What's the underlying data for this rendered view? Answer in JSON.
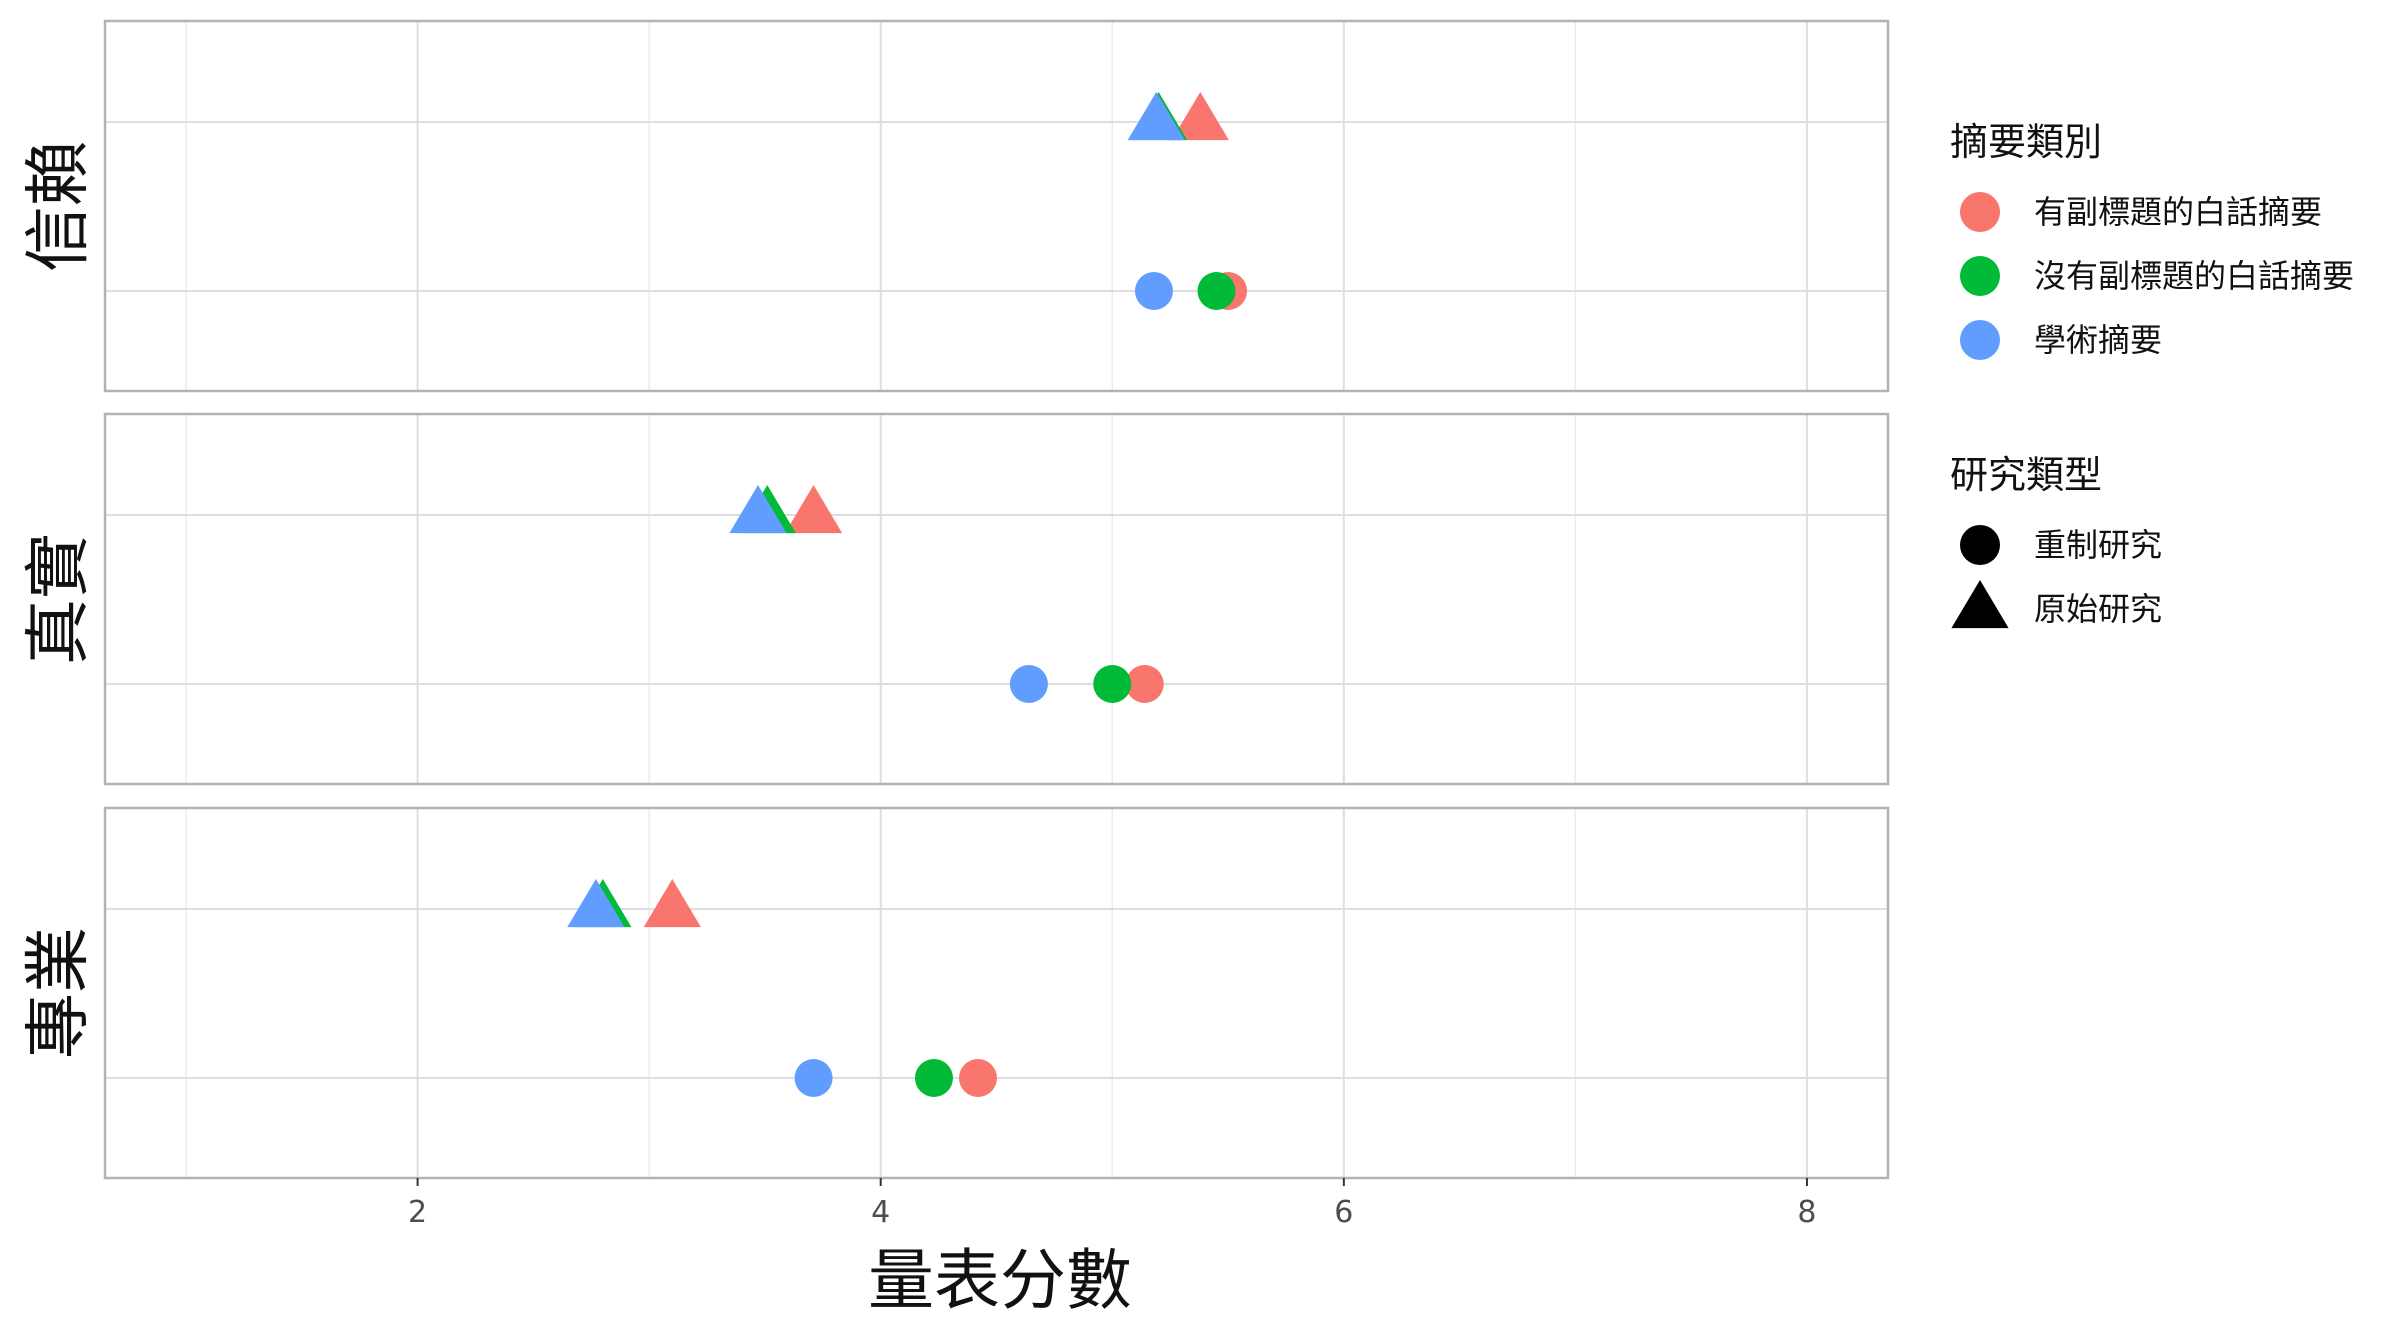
{
  "chart_data": {
    "type": "scatter",
    "xlabel": "量表分數",
    "xlim": [
      0.65,
      8.35
    ],
    "x_ticks": [
      2,
      4,
      6,
      8
    ],
    "grid": true,
    "legend_position": "right",
    "panels": [
      "信賴",
      "真實",
      "專業"
    ],
    "rows": [
      "原始研究",
      "重制研究"
    ],
    "color_legend": {
      "title": "摘要類別",
      "items": [
        {
          "label": "有副標題的白話摘要",
          "color": "#F8766D"
        },
        {
          "label": "沒有副標題的白話摘要",
          "color": "#00BA38"
        },
        {
          "label": "學術摘要",
          "color": "#619CFF"
        }
      ]
    },
    "shape_legend": {
      "title": "研究類型",
      "items": [
        {
          "label": "重制研究",
          "shape": "circle"
        },
        {
          "label": "原始研究",
          "shape": "triangle"
        }
      ]
    },
    "series": [
      {
        "category": "有副標題的白話摘要",
        "color": "#F8766D",
        "points": [
          {
            "panel": "信賴",
            "study": "原始研究",
            "x": 5.38
          },
          {
            "panel": "信賴",
            "study": "重制研究",
            "x": 5.5
          },
          {
            "panel": "真實",
            "study": "原始研究",
            "x": 3.71
          },
          {
            "panel": "真實",
            "study": "重制研究",
            "x": 5.14
          },
          {
            "panel": "專業",
            "study": "原始研究",
            "x": 3.1
          },
          {
            "panel": "專業",
            "study": "重制研究",
            "x": 4.42
          }
        ]
      },
      {
        "category": "沒有副標題的白話摘要",
        "color": "#00BA38",
        "points": [
          {
            "panel": "信賴",
            "study": "原始研究",
            "x": 5.2
          },
          {
            "panel": "信賴",
            "study": "重制研究",
            "x": 5.45
          },
          {
            "panel": "真實",
            "study": "原始研究",
            "x": 3.51
          },
          {
            "panel": "真實",
            "study": "重制研究",
            "x": 5.0
          },
          {
            "panel": "專業",
            "study": "原始研究",
            "x": 2.8
          },
          {
            "panel": "專業",
            "study": "重制研究",
            "x": 4.23
          }
        ]
      },
      {
        "category": "學術摘要",
        "color": "#619CFF",
        "points": [
          {
            "panel": "信賴",
            "study": "原始研究",
            "x": 5.19
          },
          {
            "panel": "信賴",
            "study": "重制研究",
            "x": 5.18
          },
          {
            "panel": "真實",
            "study": "原始研究",
            "x": 3.47
          },
          {
            "panel": "真實",
            "study": "重制研究",
            "x": 4.64
          },
          {
            "panel": "專業",
            "study": "原始研究",
            "x": 2.77
          },
          {
            "panel": "專業",
            "study": "重制研究",
            "x": 3.71
          }
        ]
      }
    ]
  }
}
